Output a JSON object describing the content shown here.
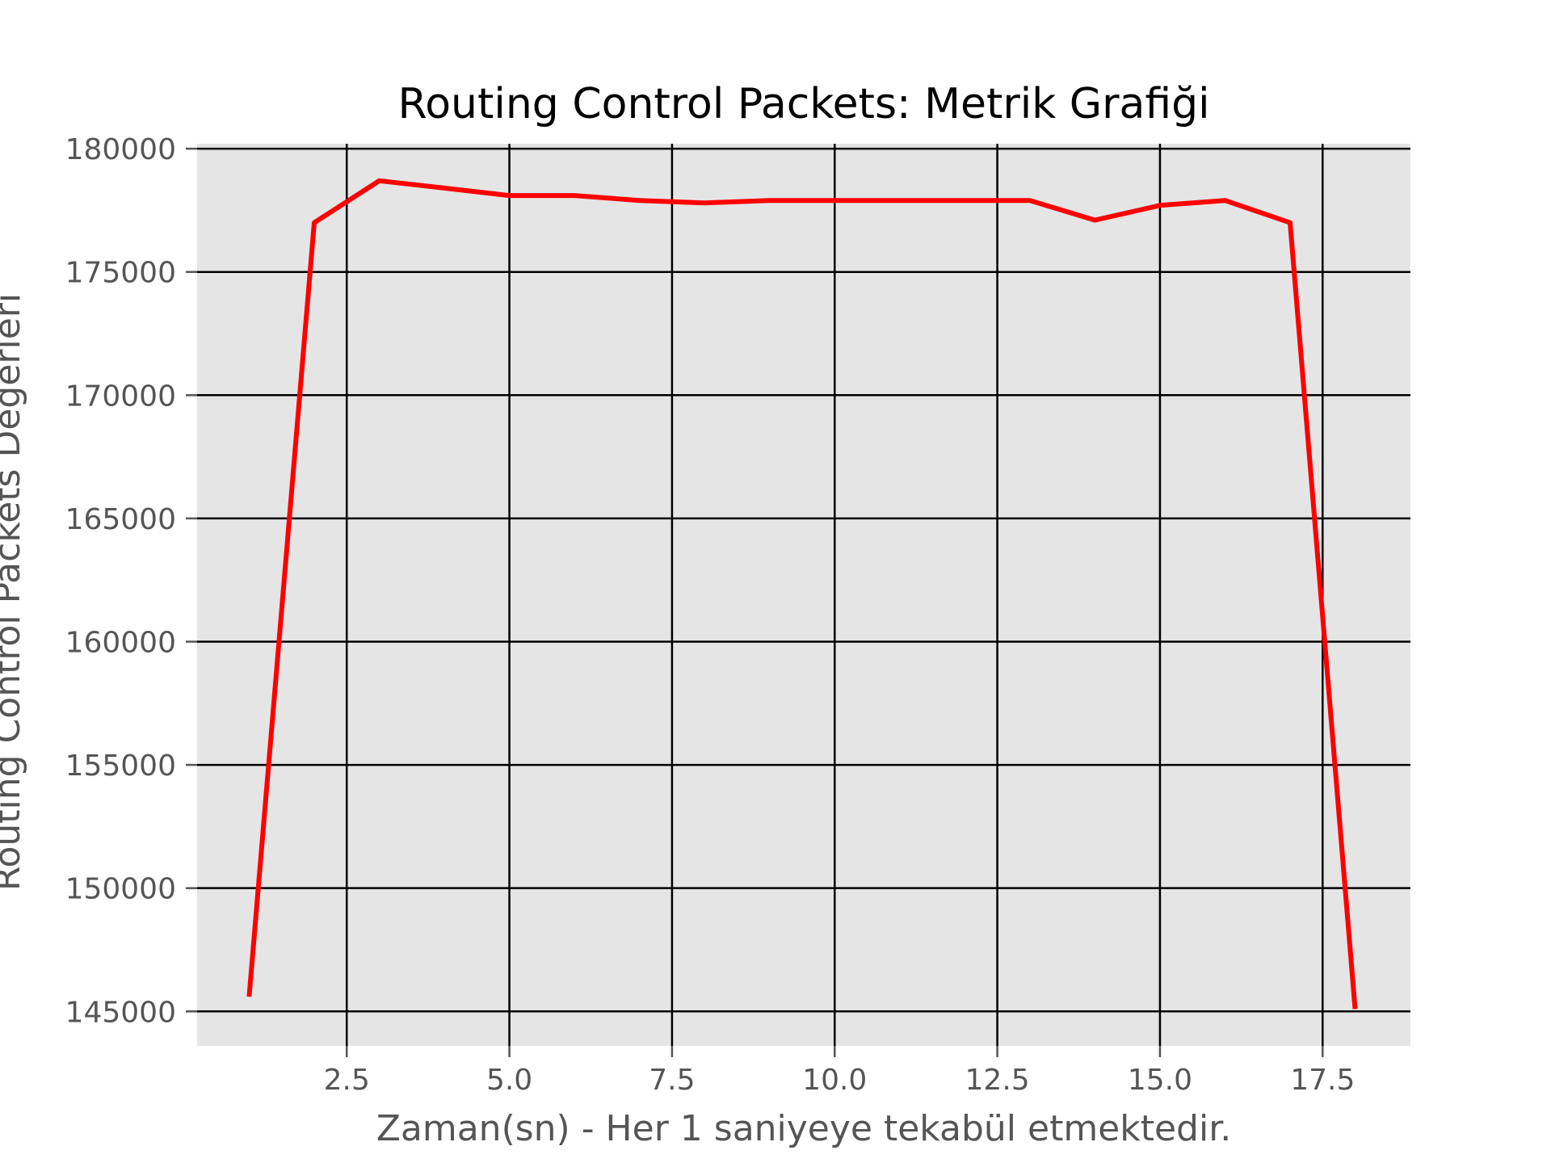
{
  "chart_data": {
    "type": "line",
    "title": "Routing Control Packets: Metrik Grafiği",
    "xlabel": "Zaman(sn) - Her 1 saniyeye tekabül etmektedir.",
    "ylabel": "Routing Control Packets Değerleri",
    "xlim": [
      0.2,
      18.85
    ],
    "ylim": [
      143600,
      180200
    ],
    "xticks": [
      2.5,
      5.0,
      7.5,
      10.0,
      12.5,
      15.0,
      17.5
    ],
    "xtick_labels": [
      "2.5",
      "5.0",
      "7.5",
      "10.0",
      "12.5",
      "15.0",
      "17.5"
    ],
    "yticks": [
      145000,
      150000,
      155000,
      160000,
      165000,
      170000,
      175000,
      180000
    ],
    "ytick_labels": [
      "145000",
      "150000",
      "155000",
      "160000",
      "165000",
      "170000",
      "175000",
      "180000"
    ],
    "grid": true,
    "colors": {
      "background": "#e5e5e5",
      "grid": "#000000",
      "line": "#ff0000"
    },
    "series": [
      {
        "x": [
          1,
          2,
          3,
          4,
          5,
          6,
          7,
          8,
          9,
          10,
          11,
          12,
          13,
          14,
          15,
          16,
          17,
          18
        ],
        "values": [
          145600,
          177000,
          178700,
          178400,
          178100,
          178100,
          177900,
          177800,
          177900,
          177900,
          177900,
          177900,
          177900,
          177100,
          177700,
          177900,
          177000,
          145100
        ]
      }
    ]
  }
}
